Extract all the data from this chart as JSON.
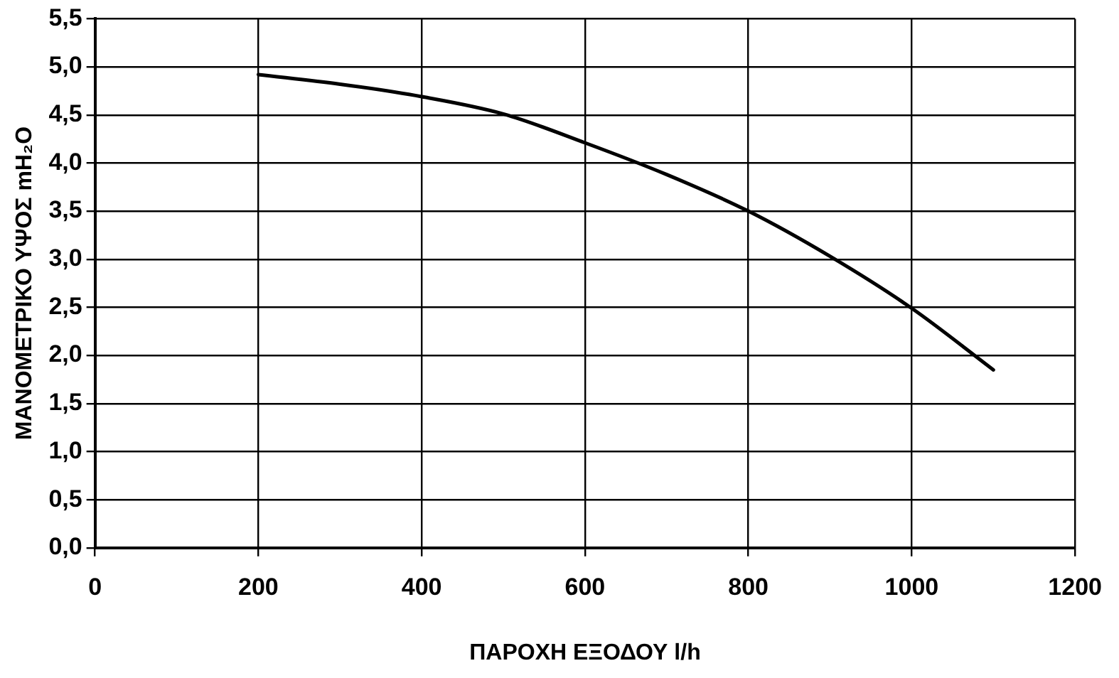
{
  "chart_data": {
    "type": "line",
    "xlabel": "ΠΑΡΟΧΗ ΕΞΟΔΟΥ l/h",
    "ylabel": "ΜΑΝΟΜΕΤΡΙΚΟ ΥΨΟΣ mH₂O",
    "x": [
      200,
      300,
      400,
      500,
      600,
      700,
      800,
      900,
      1000,
      1100
    ],
    "series": [
      {
        "color": "#000000",
        "values": [
          4.92,
          4.82,
          4.69,
          4.51,
          4.21,
          3.88,
          3.5,
          3.03,
          2.49,
          1.85
        ]
      }
    ],
    "xlim": [
      0,
      1200
    ],
    "xticks": [
      0,
      200,
      400,
      600,
      800,
      1000,
      1200
    ],
    "ylim": [
      0,
      5.5
    ],
    "yticks": [
      {
        "value": 0,
        "label": "0,0"
      },
      {
        "value": 0.5,
        "label": "0,5"
      },
      {
        "value": 1,
        "label": "1,0"
      },
      {
        "value": 1.5,
        "label": "1,5"
      },
      {
        "value": 2,
        "label": "2,0"
      },
      {
        "value": 2.5,
        "label": "2,5"
      },
      {
        "value": 3,
        "label": "3,0"
      },
      {
        "value": 3.5,
        "label": "3,5"
      },
      {
        "value": 4,
        "label": "4,0"
      },
      {
        "value": 4.5,
        "label": "4,5"
      },
      {
        "value": 5,
        "label": "5,0"
      },
      {
        "value": 5.5,
        "label": "5,5"
      }
    ],
    "grid": true,
    "legend": false,
    "marker": "none",
    "line_style": "solid"
  }
}
